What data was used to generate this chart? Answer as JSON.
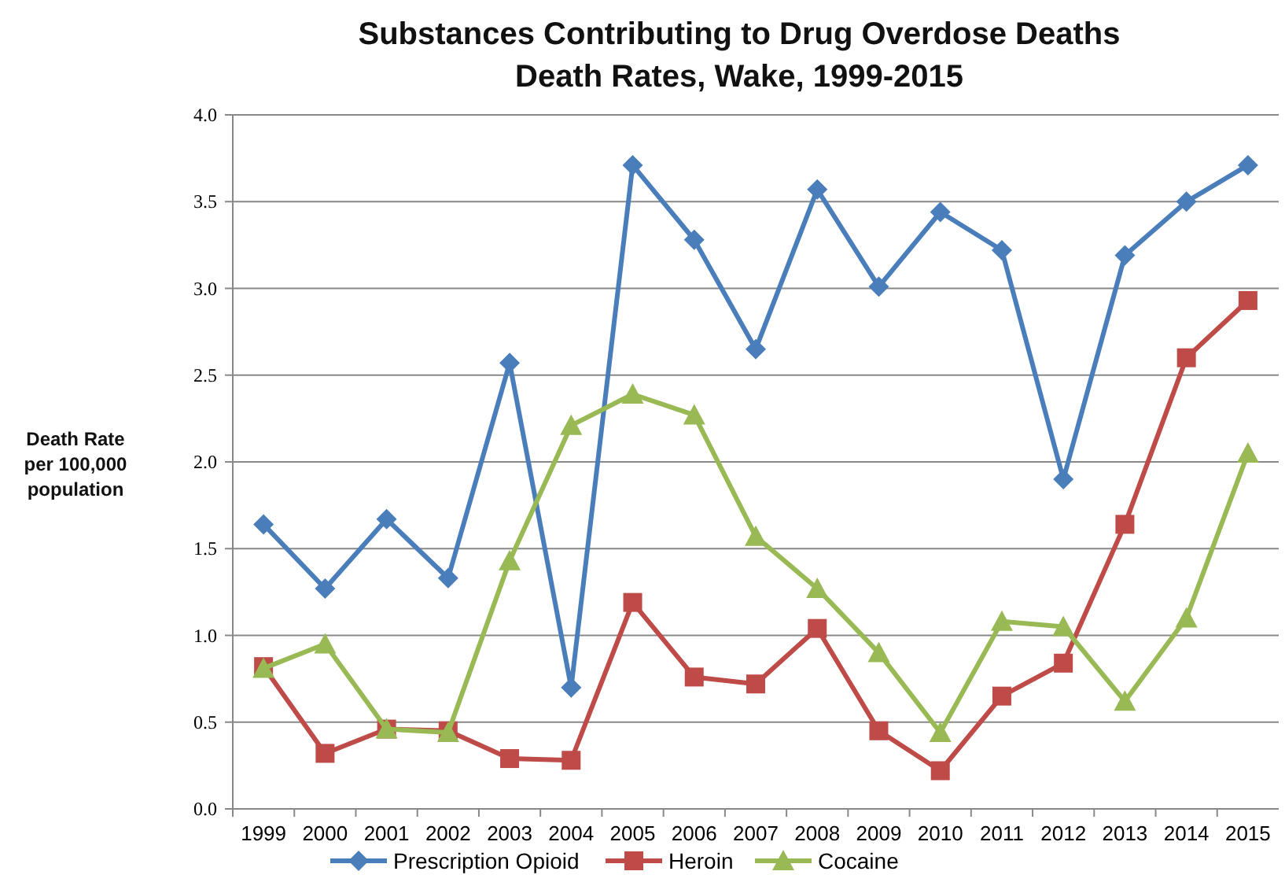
{
  "chart_data": {
    "type": "line",
    "title": "Substances Contributing to Drug Overdose Deaths\nDeath Rates, Wake, 1999-2015",
    "ylabel": "Death Rate\nper 100,000\npopulation",
    "categories": [
      "1999",
      "2000",
      "2001",
      "2002",
      "2003",
      "2004",
      "2005",
      "2006",
      "2007",
      "2008",
      "2009",
      "2010",
      "2011",
      "2012",
      "2013",
      "2014",
      "2015"
    ],
    "series": [
      {
        "name": "Prescription Opioid",
        "color": "#4a7ebb",
        "marker": "diamond",
        "values": [
          1.64,
          1.27,
          1.67,
          1.33,
          2.57,
          0.7,
          3.71,
          3.28,
          2.65,
          3.57,
          3.01,
          3.44,
          3.22,
          1.9,
          3.19,
          3.5,
          3.71
        ]
      },
      {
        "name": "Heroin",
        "color": "#be4b48",
        "marker": "square",
        "values": [
          0.82,
          0.32,
          0.46,
          0.45,
          0.29,
          0.28,
          1.19,
          0.76,
          0.72,
          1.04,
          0.45,
          0.22,
          0.65,
          0.84,
          1.64,
          2.6,
          2.93
        ]
      },
      {
        "name": "Cocaine",
        "color": "#98b954",
        "marker": "triangle",
        "values": [
          0.81,
          0.95,
          0.46,
          0.44,
          1.43,
          2.21,
          2.39,
          2.27,
          1.57,
          1.27,
          0.9,
          0.44,
          1.08,
          1.05,
          0.62,
          1.1,
          2.05
        ]
      }
    ],
    "ylim": [
      0,
      4
    ],
    "yticks": [
      {
        "value": 0,
        "label": "0.0"
      },
      {
        "value": 0.5,
        "label": "0.5"
      },
      {
        "value": 1,
        "label": "1.0"
      },
      {
        "value": 1.5,
        "label": "1.5"
      },
      {
        "value": 2,
        "label": "2.0"
      },
      {
        "value": 2.5,
        "label": "2.5"
      },
      {
        "value": 3,
        "label": "3.0"
      },
      {
        "value": 3.5,
        "label": "3.5"
      },
      {
        "value": 4,
        "label": "4.0"
      }
    ],
    "grid": "y",
    "legend": "bottom",
    "line_style": "solid"
  }
}
